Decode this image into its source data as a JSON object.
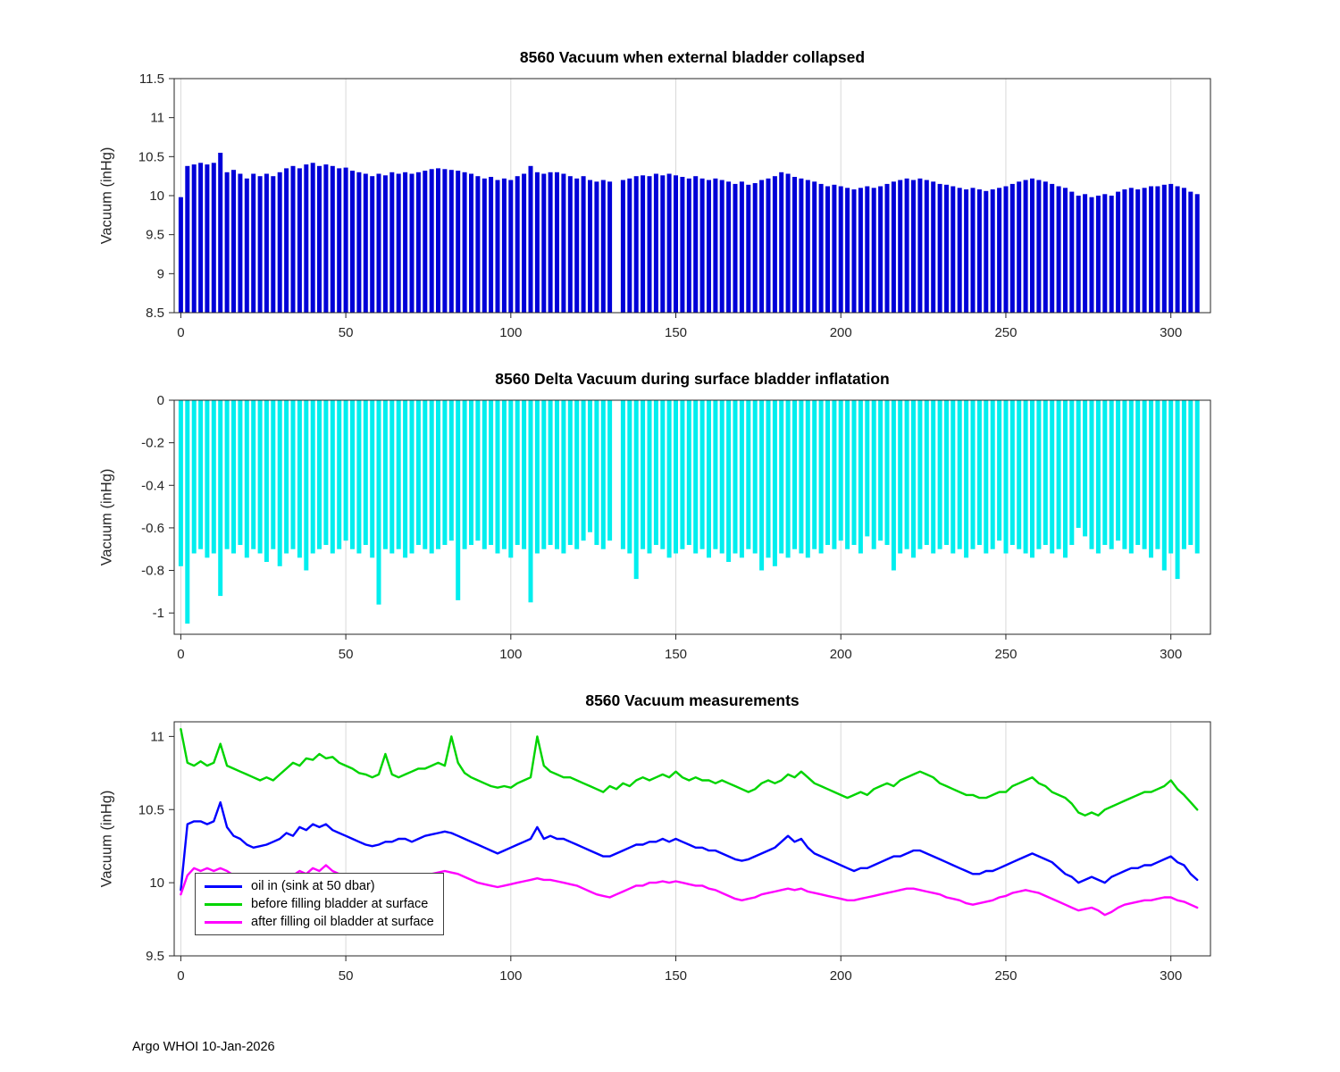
{
  "page": {
    "footer": "Argo WHOI 10-Jan-2026"
  },
  "chart_data": [
    {
      "type": "bar",
      "title": "8560 Vacuum when external bladder collapsed",
      "ylabel": "Vacuum (inHg)",
      "color": "#0000D8",
      "x_start": 0,
      "x_step": 2,
      "xlim": [
        -2,
        312
      ],
      "ylim": [
        8.5,
        11.5
      ],
      "xticks": [
        0,
        50,
        100,
        150,
        200,
        250,
        300
      ],
      "yticks": [
        8.5,
        9,
        9.5,
        10,
        10.5,
        11,
        11.5
      ],
      "baseline": 8.5,
      "grid": "vertical",
      "values": [
        9.98,
        10.38,
        10.4,
        10.42,
        10.4,
        10.42,
        10.55,
        10.3,
        10.33,
        10.28,
        10.22,
        10.28,
        10.25,
        10.28,
        10.25,
        10.3,
        10.35,
        10.38,
        10.35,
        10.4,
        10.42,
        10.38,
        10.4,
        10.38,
        10.35,
        10.36,
        10.32,
        10.3,
        10.28,
        10.25,
        10.28,
        10.26,
        10.3,
        10.28,
        10.3,
        10.28,
        10.3,
        10.32,
        10.34,
        10.35,
        10.34,
        10.33,
        10.32,
        10.3,
        10.28,
        10.25,
        10.22,
        10.24,
        10.2,
        10.22,
        10.2,
        10.25,
        10.28,
        10.38,
        10.3,
        10.28,
        10.3,
        10.3,
        10.28,
        10.25,
        10.22,
        10.25,
        10.2,
        10.18,
        10.2,
        10.18,
        null,
        10.2,
        10.22,
        10.25,
        10.26,
        10.25,
        10.28,
        10.26,
        10.28,
        10.26,
        10.24,
        10.22,
        10.25,
        10.22,
        10.2,
        10.22,
        10.2,
        10.18,
        10.15,
        10.18,
        10.14,
        10.16,
        10.2,
        10.22,
        10.25,
        10.3,
        10.28,
        10.24,
        10.22,
        10.2,
        10.18,
        10.15,
        10.12,
        10.14,
        10.12,
        10.1,
        10.08,
        10.1,
        10.12,
        10.1,
        10.12,
        10.15,
        10.18,
        10.2,
        10.22,
        10.2,
        10.22,
        10.2,
        10.18,
        10.15,
        10.14,
        10.12,
        10.1,
        10.08,
        10.1,
        10.08,
        10.06,
        10.08,
        10.1,
        10.12,
        10.15,
        10.18,
        10.2,
        10.22,
        10.2,
        10.18,
        10.15,
        10.12,
        10.1,
        10.05,
        10.0,
        10.02,
        9.98,
        10.0,
        10.02,
        10.0,
        10.05,
        10.08,
        10.1,
        10.08,
        10.1,
        10.12,
        10.12,
        10.14,
        10.15,
        10.12,
        10.1,
        10.05,
        10.02
      ]
    },
    {
      "type": "bar",
      "title": "8560 Delta Vacuum during surface bladder inflatation",
      "ylabel": "Vacuum (inHg)",
      "color": "#00EEEE",
      "x_start": 0,
      "x_step": 2,
      "xlim": [
        -2,
        312
      ],
      "ylim": [
        -1.1,
        0
      ],
      "xticks": [
        0,
        50,
        100,
        150,
        200,
        250,
        300
      ],
      "yticks": [
        0,
        -0.2,
        -0.4,
        -0.6,
        -0.8,
        -1
      ],
      "baseline": 0,
      "grid": "vertical",
      "values": [
        -0.78,
        -1.05,
        -0.72,
        -0.7,
        -0.74,
        -0.72,
        -0.92,
        -0.7,
        -0.72,
        -0.68,
        -0.74,
        -0.7,
        -0.72,
        -0.76,
        -0.7,
        -0.78,
        -0.72,
        -0.7,
        -0.74,
        -0.8,
        -0.72,
        -0.7,
        -0.68,
        -0.72,
        -0.7,
        -0.66,
        -0.7,
        -0.72,
        -0.68,
        -0.74,
        -0.96,
        -0.7,
        -0.72,
        -0.7,
        -0.74,
        -0.72,
        -0.68,
        -0.7,
        -0.72,
        -0.7,
        -0.68,
        -0.66,
        -0.94,
        -0.7,
        -0.68,
        -0.66,
        -0.7,
        -0.68,
        -0.72,
        -0.7,
        -0.74,
        -0.68,
        -0.7,
        -0.95,
        -0.72,
        -0.7,
        -0.68,
        -0.7,
        -0.72,
        -0.68,
        -0.7,
        -0.66,
        -0.62,
        -0.68,
        -0.7,
        -0.66,
        null,
        -0.7,
        -0.72,
        -0.84,
        -0.7,
        -0.72,
        -0.68,
        -0.7,
        -0.74,
        -0.72,
        -0.7,
        -0.68,
        -0.72,
        -0.7,
        -0.74,
        -0.7,
        -0.72,
        -0.76,
        -0.72,
        -0.74,
        -0.7,
        -0.72,
        -0.8,
        -0.74,
        -0.78,
        -0.72,
        -0.74,
        -0.7,
        -0.72,
        -0.74,
        -0.7,
        -0.72,
        -0.68,
        -0.7,
        -0.66,
        -0.7,
        -0.68,
        -0.72,
        -0.64,
        -0.7,
        -0.66,
        -0.68,
        -0.8,
        -0.72,
        -0.7,
        -0.74,
        -0.7,
        -0.68,
        -0.72,
        -0.7,
        -0.68,
        -0.72,
        -0.7,
        -0.74,
        -0.7,
        -0.68,
        -0.72,
        -0.7,
        -0.66,
        -0.72,
        -0.68,
        -0.7,
        -0.72,
        -0.74,
        -0.7,
        -0.68,
        -0.72,
        -0.7,
        -0.74,
        -0.68,
        -0.6,
        -0.64,
        -0.7,
        -0.72,
        -0.68,
        -0.7,
        -0.66,
        -0.7,
        -0.72,
        -0.68,
        -0.7,
        -0.74,
        -0.7,
        -0.8,
        -0.72,
        -0.84,
        -0.7,
        -0.68,
        -0.72
      ]
    },
    {
      "type": "line",
      "title": "8560 Vacuum measurements",
      "ylabel": "Vacuum (inHg)",
      "x_start": 0,
      "x_step": 2,
      "xlim": [
        -2,
        312
      ],
      "ylim": [
        9.5,
        11.1
      ],
      "xticks": [
        0,
        50,
        100,
        150,
        200,
        250,
        300
      ],
      "yticks": [
        9.5,
        10,
        10.5,
        11
      ],
      "grid": "vertical",
      "legend_position": "southwest",
      "series": [
        {
          "name": "oil in (sink at 50 dbar)",
          "color": "#0000FF",
          "values": [
            9.95,
            10.4,
            10.42,
            10.42,
            10.4,
            10.42,
            10.55,
            10.38,
            10.32,
            10.3,
            10.26,
            10.24,
            10.25,
            10.26,
            10.28,
            10.3,
            10.34,
            10.32,
            10.38,
            10.36,
            10.4,
            10.38,
            10.4,
            10.36,
            10.34,
            10.32,
            10.3,
            10.28,
            10.26,
            10.25,
            10.26,
            10.28,
            10.28,
            10.3,
            10.3,
            10.28,
            10.3,
            10.32,
            10.33,
            10.34,
            10.35,
            10.34,
            10.32,
            10.3,
            10.28,
            10.26,
            10.24,
            10.22,
            10.2,
            10.22,
            10.24,
            10.26,
            10.28,
            10.3,
            10.38,
            10.3,
            10.32,
            10.3,
            10.3,
            10.28,
            10.26,
            10.24,
            10.22,
            10.2,
            10.18,
            10.18,
            10.2,
            10.22,
            10.24,
            10.26,
            10.26,
            10.28,
            10.28,
            10.3,
            10.28,
            10.3,
            10.28,
            10.26,
            10.24,
            10.24,
            10.22,
            10.22,
            10.2,
            10.18,
            10.16,
            10.15,
            10.16,
            10.18,
            10.2,
            10.22,
            10.24,
            10.28,
            10.32,
            10.28,
            10.3,
            10.24,
            10.2,
            10.18,
            10.16,
            10.14,
            10.12,
            10.1,
            10.08,
            10.1,
            10.1,
            10.12,
            10.14,
            10.16,
            10.18,
            10.18,
            10.2,
            10.22,
            10.22,
            10.2,
            10.18,
            10.16,
            10.14,
            10.12,
            10.1,
            10.08,
            10.06,
            10.06,
            10.08,
            10.08,
            10.1,
            10.12,
            10.14,
            10.16,
            10.18,
            10.2,
            10.18,
            10.16,
            10.14,
            10.1,
            10.06,
            10.04,
            10.0,
            10.02,
            10.04,
            10.02,
            10.0,
            10.04,
            10.06,
            10.08,
            10.1,
            10.1,
            10.12,
            10.12,
            10.14,
            10.16,
            10.18,
            10.14,
            10.12,
            10.06,
            10.02
          ]
        },
        {
          "name": "before filling bladder at surface",
          "color": "#00D400",
          "values": [
            11.05,
            10.82,
            10.8,
            10.83,
            10.8,
            10.82,
            10.95,
            10.8,
            10.78,
            10.76,
            10.74,
            10.72,
            10.7,
            10.72,
            10.7,
            10.74,
            10.78,
            10.82,
            10.8,
            10.85,
            10.84,
            10.88,
            10.85,
            10.86,
            10.82,
            10.8,
            10.78,
            10.75,
            10.74,
            10.72,
            10.74,
            10.88,
            10.74,
            10.72,
            10.74,
            10.76,
            10.78,
            10.78,
            10.8,
            10.82,
            10.8,
            11.0,
            10.82,
            10.75,
            10.72,
            10.7,
            10.68,
            10.66,
            10.65,
            10.66,
            10.65,
            10.68,
            10.7,
            10.72,
            11.0,
            10.8,
            10.76,
            10.74,
            10.72,
            10.72,
            10.7,
            10.68,
            10.66,
            10.64,
            10.62,
            10.66,
            10.64,
            10.68,
            10.66,
            10.7,
            10.72,
            10.7,
            10.72,
            10.74,
            10.72,
            10.76,
            10.72,
            10.7,
            10.72,
            10.7,
            10.7,
            10.68,
            10.7,
            10.68,
            10.66,
            10.64,
            10.62,
            10.64,
            10.68,
            10.7,
            10.68,
            10.7,
            10.74,
            10.72,
            10.76,
            10.72,
            10.68,
            10.66,
            10.64,
            10.62,
            10.6,
            10.58,
            10.6,
            10.62,
            10.6,
            10.64,
            10.66,
            10.68,
            10.66,
            10.7,
            10.72,
            10.74,
            10.76,
            10.74,
            10.72,
            10.68,
            10.66,
            10.64,
            10.62,
            10.6,
            10.6,
            10.58,
            10.58,
            10.6,
            10.62,
            10.62,
            10.66,
            10.68,
            10.7,
            10.72,
            10.68,
            10.66,
            10.62,
            10.6,
            10.58,
            10.54,
            10.48,
            10.46,
            10.48,
            10.46,
            10.5,
            10.52,
            10.54,
            10.56,
            10.58,
            10.6,
            10.62,
            10.62,
            10.64,
            10.66,
            10.7,
            10.64,
            10.6,
            10.55,
            10.5
          ]
        },
        {
          "name": "after filling oil bladder at surface",
          "color": "#FF00FF",
          "values": [
            9.92,
            10.05,
            10.1,
            10.08,
            10.1,
            10.08,
            10.1,
            10.08,
            10.05,
            10.04,
            10.02,
            10.0,
            10.0,
            10.02,
            10.0,
            10.04,
            10.06,
            10.05,
            10.08,
            10.06,
            10.1,
            10.08,
            10.12,
            10.08,
            10.06,
            10.04,
            10.02,
            10.0,
            9.99,
            9.98,
            9.98,
            10.0,
            10.0,
            10.02,
            10.02,
            10.03,
            10.04,
            10.05,
            10.06,
            10.07,
            10.08,
            10.07,
            10.06,
            10.04,
            10.02,
            10.0,
            9.99,
            9.98,
            9.97,
            9.98,
            9.99,
            10.0,
            10.01,
            10.02,
            10.03,
            10.02,
            10.02,
            10.01,
            10.0,
            9.99,
            9.98,
            9.96,
            9.94,
            9.92,
            9.91,
            9.9,
            9.92,
            9.94,
            9.96,
            9.98,
            9.98,
            10.0,
            10.0,
            10.01,
            10.0,
            10.01,
            10.0,
            9.99,
            9.98,
            9.98,
            9.96,
            9.95,
            9.93,
            9.91,
            9.89,
            9.88,
            9.89,
            9.9,
            9.92,
            9.93,
            9.94,
            9.95,
            9.96,
            9.95,
            9.96,
            9.94,
            9.93,
            9.92,
            9.91,
            9.9,
            9.89,
            9.88,
            9.88,
            9.89,
            9.9,
            9.91,
            9.92,
            9.93,
            9.94,
            9.95,
            9.96,
            9.96,
            9.95,
            9.94,
            9.93,
            9.92,
            9.9,
            9.89,
            9.88,
            9.86,
            9.85,
            9.86,
            9.87,
            9.88,
            9.9,
            9.91,
            9.93,
            9.94,
            9.95,
            9.94,
            9.93,
            9.91,
            9.89,
            9.87,
            9.85,
            9.83,
            9.81,
            9.82,
            9.83,
            9.81,
            9.78,
            9.8,
            9.83,
            9.85,
            9.86,
            9.87,
            9.88,
            9.88,
            9.89,
            9.9,
            9.9,
            9.88,
            9.87,
            9.85,
            9.83
          ]
        }
      ]
    }
  ]
}
